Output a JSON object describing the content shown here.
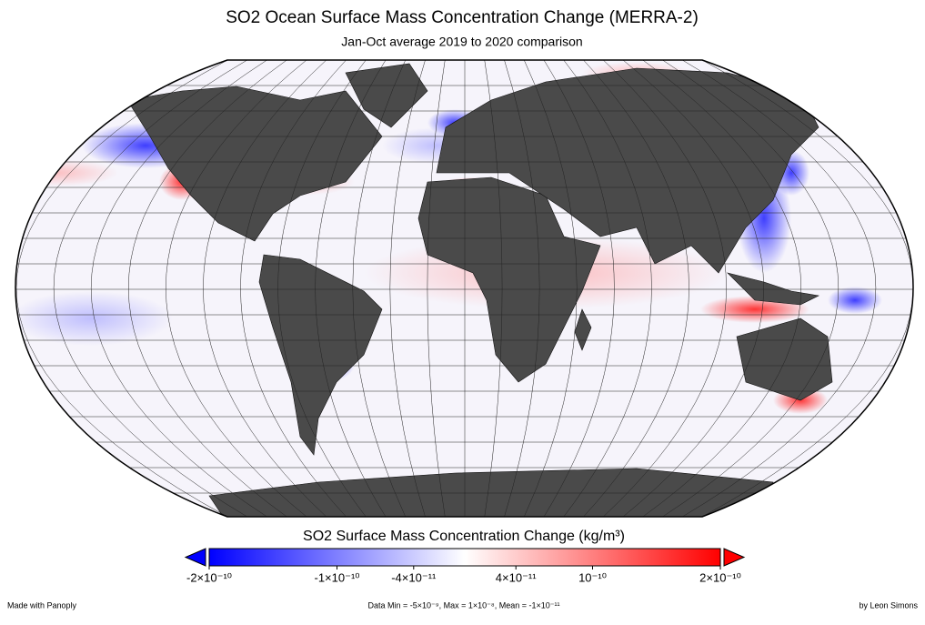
{
  "title": "SO2 Ocean Surface Mass Concentration Change (MERRA-2)",
  "subtitle": "Jan-Oct average 2019 to 2020 comparison",
  "colorbar": {
    "title": "SO2 Surface Mass Concentration Change (kg/m³)",
    "range": [
      -2e-10,
      2e-10
    ],
    "colors": [
      "#0000ff",
      "#ffffff",
      "#ff0000"
    ],
    "ticks": [
      {
        "value": -2e-10,
        "label": "-2×10⁻¹⁰"
      },
      {
        "value": -1e-10,
        "label": "-1×10⁻¹⁰"
      },
      {
        "value": -4e-11,
        "label": "-4×10⁻¹¹"
      },
      {
        "value": 4e-11,
        "label": "4×10⁻¹¹"
      },
      {
        "value": 1e-10,
        "label": "10⁻¹⁰"
      },
      {
        "value": 2e-10,
        "label": "2×10⁻¹⁰"
      }
    ]
  },
  "footer": {
    "left": "Made with Panoply",
    "center": "Data Min = -5×10⁻⁹, Max = 1×10⁻⁸, Mean = -1×10⁻¹¹",
    "right": "by Leon Simons"
  }
}
